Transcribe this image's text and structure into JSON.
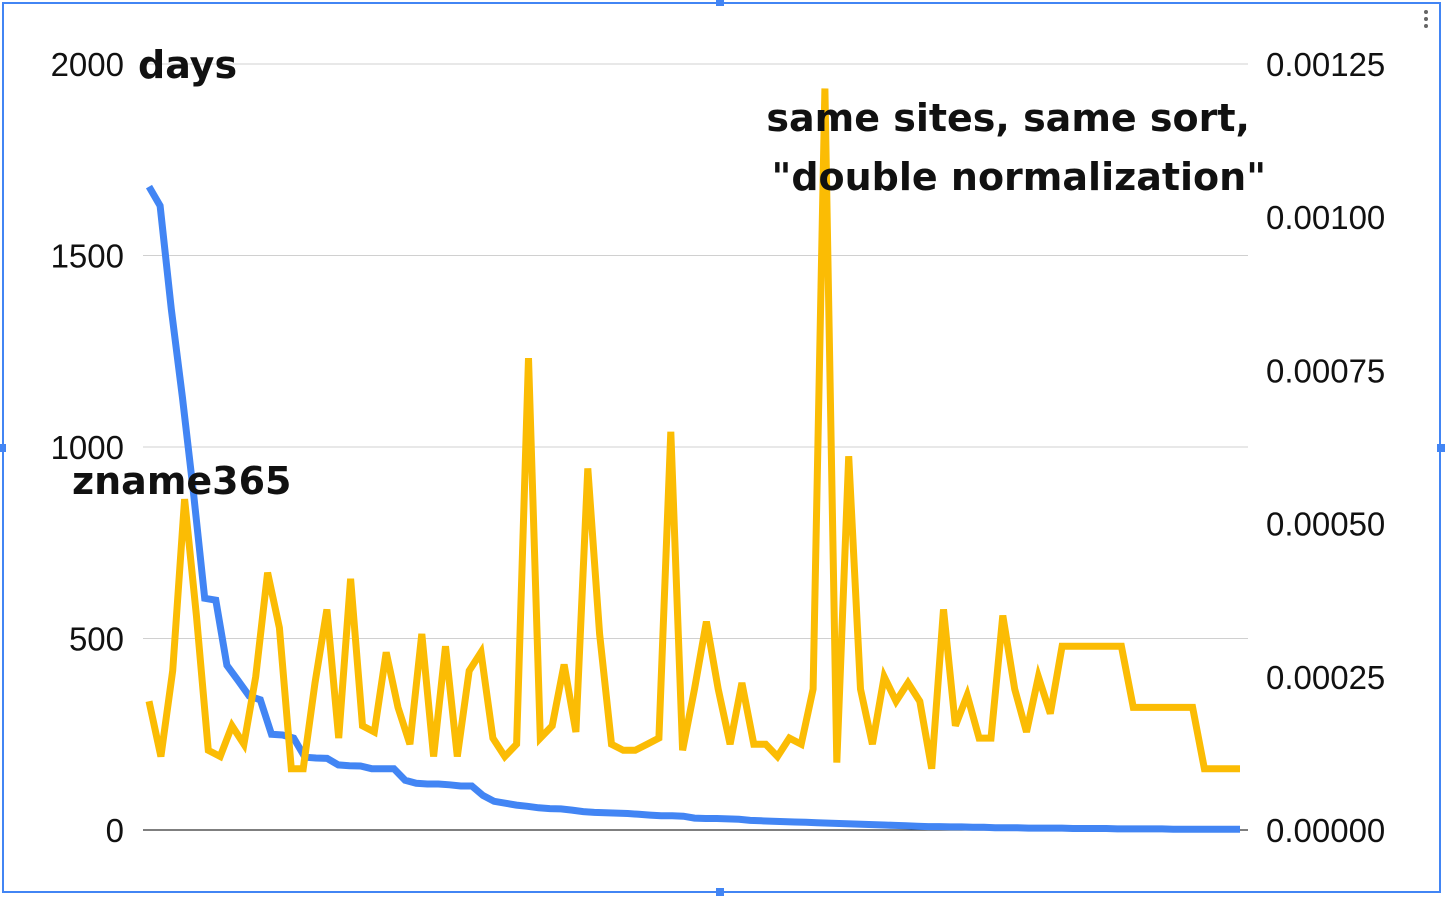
{
  "chart_data": {
    "type": "line",
    "left_axis": {
      "label": "days",
      "ylim": [
        0,
        2000
      ],
      "ticks": [
        "0",
        "500",
        "1000",
        "1500",
        "2000"
      ],
      "tick_values": [
        0,
        500,
        1000,
        1500,
        2000
      ]
    },
    "right_axis": {
      "ylim": [
        0,
        0.00125
      ],
      "ticks": [
        "0.00000",
        "0.00025",
        "0.00050",
        "0.00075",
        "0.00100",
        "0.00125"
      ],
      "tick_values": [
        0,
        0.00025,
        0.0005,
        0.00075,
        0.001,
        0.00125
      ]
    },
    "annotations": {
      "series_label": "zname365",
      "title_line1": "same sites, same sort,",
      "title_line2": "\"double normalization\""
    },
    "grid": true,
    "series": [
      {
        "axis": "left",
        "color": "#4285f4",
        "values": [
          1680,
          1630,
          1360,
          1130,
          880,
          605,
          600,
          430,
          390,
          350,
          340,
          250,
          248,
          240,
          190,
          188,
          187,
          170,
          168,
          167,
          160,
          160,
          160,
          130,
          122,
          120,
          120,
          118,
          115,
          115,
          90,
          75,
          70,
          65,
          62,
          58,
          56,
          55,
          52,
          48,
          46,
          45,
          44,
          43,
          41,
          39,
          37,
          37,
          36,
          31,
          30,
          30,
          29,
          28,
          25,
          24,
          23,
          22,
          21,
          20,
          19,
          18,
          17,
          16,
          15,
          14,
          13,
          12,
          11,
          10,
          9,
          9,
          8,
          8,
          7,
          7,
          6,
          6,
          6,
          5,
          5,
          5,
          5,
          4,
          4,
          4,
          4,
          3,
          3,
          3,
          3,
          3,
          2,
          2,
          2,
          2,
          2,
          2,
          2
        ]
      },
      {
        "axis": "right",
        "color": "#fbbc04",
        "values": [
          0.00021,
          0.00012,
          0.00026,
          0.00054,
          0.00035,
          0.00013,
          0.00012,
          0.00017,
          0.00014,
          0.00025,
          0.00042,
          0.00033,
          0.0001,
          0.0001,
          0.00024,
          0.00036,
          0.00015,
          0.00041,
          0.00017,
          0.00016,
          0.00029,
          0.0002,
          0.00014,
          0.00032,
          0.00012,
          0.0003,
          0.00012,
          0.00026,
          0.00029,
          0.00015,
          0.00012,
          0.00014,
          0.00077,
          0.00015,
          0.00017,
          0.00027,
          0.00016,
          0.00059,
          0.00032,
          0.00014,
          0.00013,
          0.00013,
          0.00014,
          0.00015,
          0.00065,
          0.00013,
          0.00023,
          0.00034,
          0.00023,
          0.00014,
          0.00024,
          0.00014,
          0.00014,
          0.00012,
          0.00015,
          0.00014,
          0.00023,
          0.00121,
          0.00011,
          0.00061,
          0.00023,
          0.00014,
          0.00025,
          0.00021,
          0.00024,
          0.00021,
          0.0001,
          0.00036,
          0.00017,
          0.00022,
          0.00015,
          0.00015,
          0.00035,
          0.00023,
          0.00016,
          0.00025,
          0.00019,
          0.0003,
          0.0003,
          0.0003,
          0.0003,
          0.0003,
          0.0003,
          0.0002,
          0.0002,
          0.0002,
          0.0002,
          0.0002,
          0.0002,
          0.0001,
          0.0001,
          0.0001,
          0.0001
        ]
      }
    ]
  }
}
